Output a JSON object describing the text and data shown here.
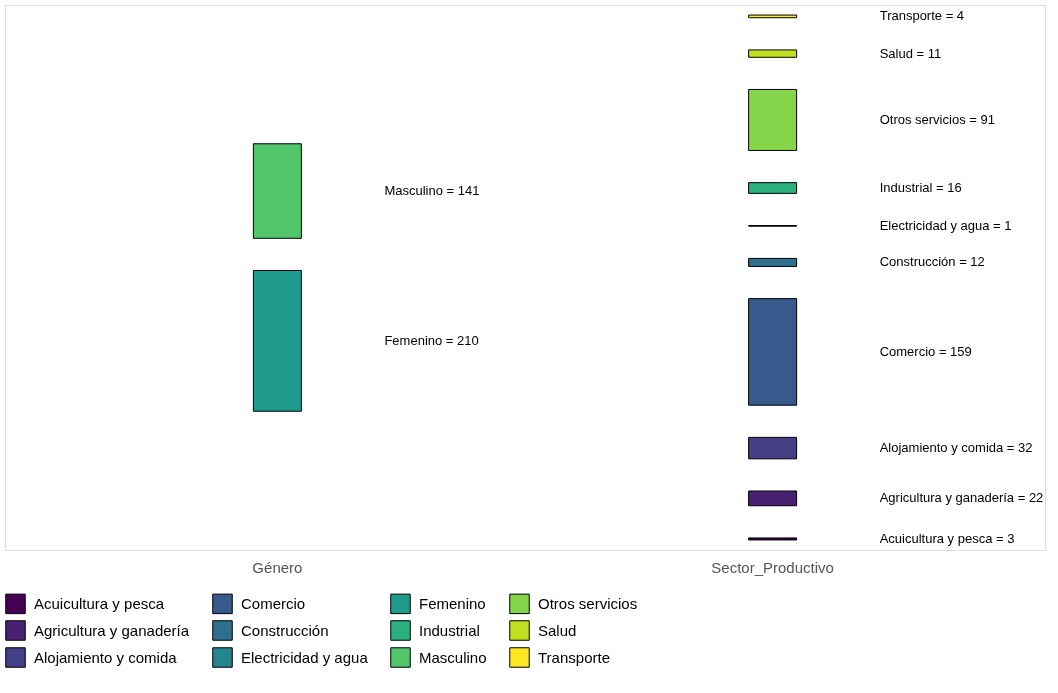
{
  "chart_data": {
    "type": "other",
    "categories": [
      "Género",
      "Sector_Productivo"
    ],
    "legend": "bottom",
    "series": [
      {
        "name": "Acuicultura y pesca",
        "color": "#440154",
        "values": [
          null,
          3
        ],
        "value_labels": [
          null,
          "Acuicultura y pesca = 3"
        ]
      },
      {
        "name": "Agricultura y ganadería",
        "color": "#482173",
        "values": [
          null,
          22
        ],
        "value_labels": [
          null,
          "Agricultura y ganadería = 22"
        ]
      },
      {
        "name": "Alojamiento y comida",
        "color": "#433e85",
        "values": [
          null,
          32
        ],
        "value_labels": [
          null,
          "Alojamiento y comida = 32"
        ]
      },
      {
        "name": "Comercio",
        "color": "#38598c",
        "values": [
          null,
          159
        ],
        "value_labels": [
          null,
          "Comercio = 159"
        ]
      },
      {
        "name": "Construcción",
        "color": "#2d708e",
        "values": [
          null,
          12
        ],
        "value_labels": [
          null,
          "Construcción = 12"
        ]
      },
      {
        "name": "Electricidad y agua",
        "color": "#25858e",
        "values": [
          null,
          1
        ],
        "value_labels": [
          null,
          "Electricidad y agua = 1"
        ]
      },
      {
        "name": "Femenino",
        "color": "#1e9b8a",
        "values": [
          210,
          null
        ],
        "value_labels": [
          "Femenino = 210",
          null
        ]
      },
      {
        "name": "Industrial",
        "color": "#2bb07f",
        "values": [
          null,
          16
        ],
        "value_labels": [
          null,
          "Industrial = 16"
        ]
      },
      {
        "name": "Masculino",
        "color": "#51c56a",
        "values": [
          141,
          null
        ],
        "value_labels": [
          "Masculino = 141",
          null
        ]
      },
      {
        "name": "Otros servicios",
        "color": "#85d54a",
        "values": [
          null,
          91
        ],
        "value_labels": [
          null,
          "Otros servicios = 91"
        ]
      },
      {
        "name": "Salud",
        "color": "#c2df23",
        "values": [
          null,
          11
        ],
        "value_labels": [
          null,
          "Salud = 11"
        ]
      },
      {
        "name": "Transporte",
        "color": "#fde725",
        "values": [
          null,
          4
        ],
        "value_labels": [
          null,
          "Transporte = 4"
        ]
      }
    ]
  }
}
